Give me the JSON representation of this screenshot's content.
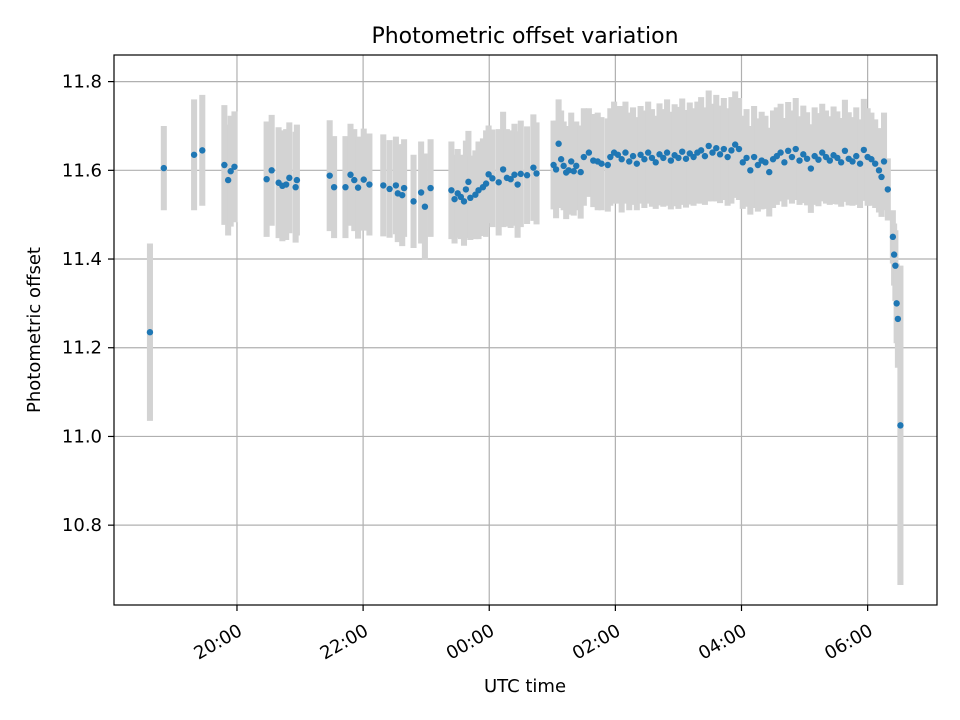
{
  "chart_data": {
    "type": "scatter",
    "title": "Photometric offset variation",
    "xlabel": "UTC time",
    "ylabel": "Photometric offset",
    "x_unit": "hours",
    "x_ticks": [
      {
        "h": 20,
        "label": "20:00"
      },
      {
        "h": 22,
        "label": "22:00"
      },
      {
        "h": 24,
        "label": "00:00"
      },
      {
        "h": 26,
        "label": "02:00"
      },
      {
        "h": 28,
        "label": "04:00"
      },
      {
        "h": 30,
        "label": "06:00"
      }
    ],
    "y_ticks": [
      {
        "v": 10.8,
        "label": "10.8"
      },
      {
        "v": 11.0,
        "label": "11.0"
      },
      {
        "v": 11.2,
        "label": "11.2"
      },
      {
        "v": 11.4,
        "label": "11.4"
      },
      {
        "v": 11.6,
        "label": "11.6"
      },
      {
        "v": 11.8,
        "label": "11.8"
      }
    ],
    "xlim": [
      18.05,
      31.1
    ],
    "ylim": [
      10.62,
      11.86
    ],
    "grid": true,
    "colors": {
      "points": "#1f77b4",
      "errorbars": "#d3d3d3",
      "grid": "#b0b0b0"
    },
    "errorbar_width": 0.16,
    "points": [
      [
        18.62,
        11.235
      ],
      [
        18.84,
        11.605
      ],
      [
        19.32,
        11.635
      ],
      [
        19.45,
        11.645
      ],
      [
        19.8,
        11.612
      ],
      [
        19.86,
        11.578
      ],
      [
        19.9,
        11.598
      ],
      [
        19.96,
        11.608
      ],
      [
        20.47,
        11.58
      ],
      [
        20.55,
        11.6
      ],
      [
        20.66,
        11.572
      ],
      [
        20.72,
        11.565
      ],
      [
        20.78,
        11.568
      ],
      [
        20.83,
        11.583
      ],
      [
        20.93,
        11.562
      ],
      [
        20.95,
        11.578
      ],
      [
        21.47,
        11.588
      ],
      [
        21.54,
        11.562
      ],
      [
        21.72,
        11.562
      ],
      [
        21.8,
        11.59
      ],
      [
        21.86,
        11.578
      ],
      [
        21.92,
        11.561
      ],
      [
        22.01,
        11.579
      ],
      [
        22.1,
        11.568
      ],
      [
        22.32,
        11.566
      ],
      [
        22.42,
        11.558
      ],
      [
        22.52,
        11.566
      ],
      [
        22.55,
        11.548
      ],
      [
        22.62,
        11.544
      ],
      [
        22.65,
        11.56
      ],
      [
        22.8,
        11.53
      ],
      [
        22.92,
        11.55
      ],
      [
        22.98,
        11.518
      ],
      [
        23.07,
        11.56
      ],
      [
        23.4,
        11.555
      ],
      [
        23.45,
        11.535
      ],
      [
        23.5,
        11.548
      ],
      [
        23.55,
        11.54
      ],
      [
        23.6,
        11.53
      ],
      [
        23.63,
        11.557
      ],
      [
        23.67,
        11.574
      ],
      [
        23.7,
        11.538
      ],
      [
        23.78,
        11.545
      ],
      [
        23.83,
        11.555
      ],
      [
        23.9,
        11.562
      ],
      [
        23.95,
        11.57
      ],
      [
        23.99,
        11.591
      ],
      [
        24.05,
        11.582
      ],
      [
        24.15,
        11.573
      ],
      [
        24.22,
        11.602
      ],
      [
        24.28,
        11.583
      ],
      [
        24.34,
        11.58
      ],
      [
        24.4,
        11.59
      ],
      [
        24.45,
        11.568
      ],
      [
        24.5,
        11.592
      ],
      [
        24.6,
        11.589
      ],
      [
        24.7,
        11.606
      ],
      [
        24.75,
        11.593
      ],
      [
        25.02,
        11.612
      ],
      [
        25.06,
        11.602
      ],
      [
        25.1,
        11.66
      ],
      [
        25.14,
        11.625
      ],
      [
        25.18,
        11.61
      ],
      [
        25.22,
        11.595
      ],
      [
        25.26,
        11.6
      ],
      [
        25.3,
        11.62
      ],
      [
        25.34,
        11.598
      ],
      [
        25.38,
        11.61
      ],
      [
        25.45,
        11.596
      ],
      [
        25.5,
        11.63
      ],
      [
        25.58,
        11.64
      ],
      [
        25.65,
        11.622
      ],
      [
        25.72,
        11.62
      ],
      [
        25.78,
        11.615
      ],
      [
        25.88,
        11.612
      ],
      [
        25.92,
        11.63
      ],
      [
        25.98,
        11.64
      ],
      [
        26.04,
        11.635
      ],
      [
        26.1,
        11.625
      ],
      [
        26.16,
        11.64
      ],
      [
        26.22,
        11.62
      ],
      [
        26.28,
        11.632
      ],
      [
        26.34,
        11.615
      ],
      [
        26.4,
        11.635
      ],
      [
        26.46,
        11.625
      ],
      [
        26.52,
        11.64
      ],
      [
        26.58,
        11.628
      ],
      [
        26.64,
        11.618
      ],
      [
        26.7,
        11.636
      ],
      [
        26.76,
        11.628
      ],
      [
        26.82,
        11.64
      ],
      [
        26.88,
        11.622
      ],
      [
        26.94,
        11.634
      ],
      [
        27.0,
        11.628
      ],
      [
        27.06,
        11.642
      ],
      [
        27.12,
        11.626
      ],
      [
        27.18,
        11.638
      ],
      [
        27.24,
        11.63
      ],
      [
        27.3,
        11.64
      ],
      [
        27.36,
        11.645
      ],
      [
        27.42,
        11.632
      ],
      [
        27.48,
        11.655
      ],
      [
        27.54,
        11.64
      ],
      [
        27.6,
        11.65
      ],
      [
        27.66,
        11.636
      ],
      [
        27.72,
        11.648
      ],
      [
        27.78,
        11.63
      ],
      [
        27.84,
        11.645
      ],
      [
        27.9,
        11.658
      ],
      [
        27.96,
        11.648
      ],
      [
        28.02,
        11.618
      ],
      [
        28.08,
        11.628
      ],
      [
        28.14,
        11.6
      ],
      [
        28.2,
        11.63
      ],
      [
        28.26,
        11.612
      ],
      [
        28.32,
        11.622
      ],
      [
        28.38,
        11.618
      ],
      [
        28.44,
        11.596
      ],
      [
        28.5,
        11.625
      ],
      [
        28.56,
        11.632
      ],
      [
        28.62,
        11.64
      ],
      [
        28.68,
        11.618
      ],
      [
        28.74,
        11.644
      ],
      [
        28.8,
        11.63
      ],
      [
        28.86,
        11.648
      ],
      [
        28.92,
        11.622
      ],
      [
        28.98,
        11.636
      ],
      [
        29.04,
        11.626
      ],
      [
        29.1,
        11.604
      ],
      [
        29.16,
        11.632
      ],
      [
        29.22,
        11.624
      ],
      [
        29.28,
        11.64
      ],
      [
        29.34,
        11.63
      ],
      [
        29.4,
        11.622
      ],
      [
        29.46,
        11.634
      ],
      [
        29.52,
        11.628
      ],
      [
        29.58,
        11.618
      ],
      [
        29.64,
        11.644
      ],
      [
        29.7,
        11.626
      ],
      [
        29.76,
        11.62
      ],
      [
        29.82,
        11.632
      ],
      [
        29.88,
        11.615
      ],
      [
        29.94,
        11.646
      ],
      [
        30.0,
        11.63
      ],
      [
        30.06,
        11.625
      ],
      [
        30.12,
        11.615
      ],
      [
        30.18,
        11.6
      ],
      [
        30.22,
        11.585
      ],
      [
        30.26,
        11.62
      ],
      [
        30.32,
        11.557
      ],
      [
        30.4,
        11.45
      ],
      [
        30.42,
        11.41
      ],
      [
        30.44,
        11.385
      ],
      [
        30.46,
        11.3
      ],
      [
        30.48,
        11.265
      ],
      [
        30.52,
        11.025
      ]
    ],
    "errors": [
      0.2,
      0.095,
      0.125,
      0.125,
      0.135,
      0.125,
      0.125,
      0.125,
      0.13,
      0.125,
      0.125,
      0.125,
      0.125,
      0.125,
      0.125,
      0.125,
      0.125,
      0.115,
      0.115,
      0.115,
      0.115,
      0.115,
      0.115,
      0.115,
      0.115,
      0.11,
      0.11,
      0.11,
      0.115,
      0.11,
      0.105,
      0.115,
      0.12,
      0.11,
      0.11,
      0.1,
      0.1,
      0.095,
      0.1,
      0.11,
      0.115,
      0.095,
      0.1,
      0.11,
      0.11,
      0.12,
      0.11,
      0.11,
      0.12,
      0.13,
      0.11,
      0.11,
      0.115,
      0.12,
      0.12,
      0.11,
      0.12,
      0.115,
      0.1,
      0.11,
      0.1,
      0.11,
      0.1,
      0.105,
      0.1,
      0.11,
      0.1,
      0.1,
      0.105,
      0.11,
      0.1,
      0.105,
      0.11,
      0.105,
      0.105,
      0.11,
      0.115,
      0.11,
      0.12,
      0.115,
      0.11,
      0.11,
      0.105,
      0.11,
      0.11,
      0.115,
      0.11,
      0.105,
      0.115,
      0.11,
      0.12,
      0.11,
      0.115,
      0.115,
      0.12,
      0.11,
      0.115,
      0.11,
      0.115,
      0.12,
      0.11,
      0.125,
      0.11,
      0.12,
      0.11,
      0.115,
      0.11,
      0.12,
      0.12,
      0.115,
      0.105,
      0.11,
      0.1,
      0.115,
      0.105,
      0.11,
      0.105,
      0.1,
      0.11,
      0.11,
      0.11,
      0.1,
      0.11,
      0.105,
      0.115,
      0.1,
      0.11,
      0.105,
      0.1,
      0.11,
      0.105,
      0.11,
      0.105,
      0.1,
      0.11,
      0.105,
      0.1,
      0.115,
      0.105,
      0.1,
      0.11,
      0.1,
      0.115,
      0.11,
      0.105,
      0.1,
      0.095,
      0.09,
      0.11,
      0.07,
      0.06,
      0.07,
      0.08,
      0.09,
      0.11,
      0.36
    ]
  }
}
